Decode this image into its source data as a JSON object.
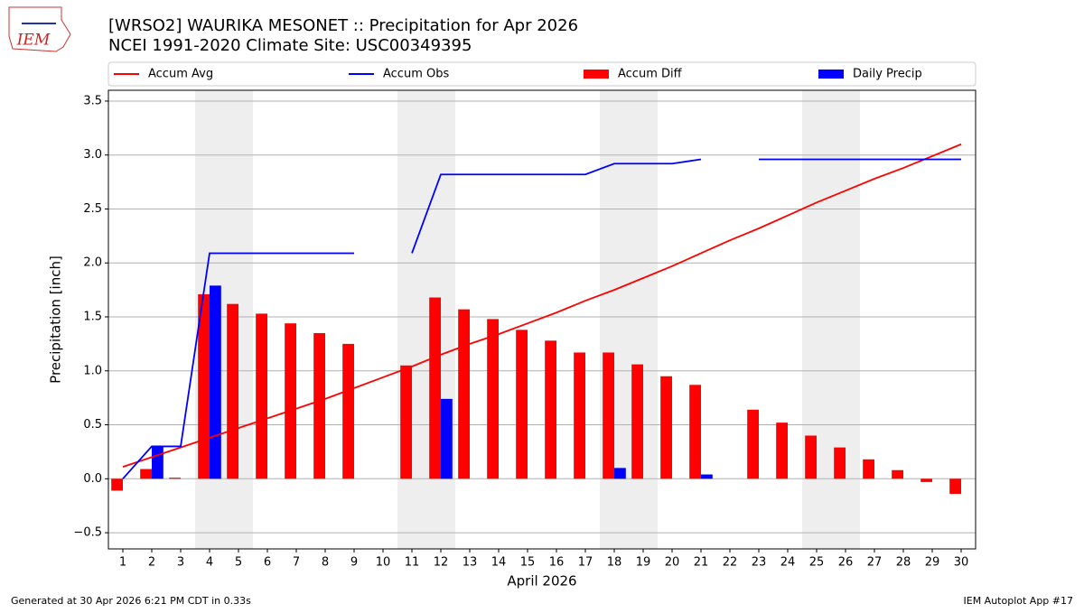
{
  "chart_data": {
    "type": "combo",
    "title": "[WRSO2] WAURIKA MESONET :: Precipitation for Apr 2026",
    "subtitle": "NCEI 1991-2020 Climate Site: USC00349395",
    "x_label": "April 2026",
    "y_label": "Precipitation [inch]",
    "x": [
      1,
      2,
      3,
      4,
      5,
      6,
      7,
      8,
      9,
      10,
      11,
      12,
      13,
      14,
      15,
      16,
      17,
      18,
      19,
      20,
      21,
      22,
      23,
      24,
      25,
      26,
      27,
      28,
      29,
      30
    ],
    "xlim": [
      0.5,
      30.5
    ],
    "xticks": [
      1,
      2,
      3,
      4,
      5,
      6,
      7,
      8,
      9,
      10,
      11,
      12,
      13,
      14,
      15,
      16,
      17,
      18,
      19,
      20,
      21,
      22,
      23,
      24,
      25,
      26,
      27,
      28,
      29,
      30
    ],
    "ylim": [
      -0.65,
      3.6
    ],
    "yticks": [
      {
        "value": -0.5,
        "label": "−0.5"
      },
      {
        "value": 0,
        "label": "0.0"
      },
      0.5,
      {
        "value": 1,
        "label": "1.0"
      },
      1.5,
      {
        "value": 2,
        "label": "2.0"
      },
      2.5,
      {
        "value": 3,
        "label": "3.0"
      },
      3.5
    ],
    "grid": true,
    "shaded_x_ranges": [
      [
        3.5,
        5.5
      ],
      [
        10.5,
        12.5
      ],
      [
        17.5,
        19.5
      ],
      [
        24.5,
        26.5
      ]
    ],
    "series": [
      {
        "name": "Accum Avg",
        "type": "line",
        "color": "#ff0000",
        "values": [
          0.11,
          0.2,
          0.29,
          0.38,
          0.47,
          0.56,
          0.65,
          0.74,
          0.84,
          0.94,
          1.04,
          1.15,
          1.25,
          1.34,
          1.44,
          1.54,
          1.65,
          1.75,
          1.86,
          1.97,
          2.09,
          2.21,
          2.32,
          2.44,
          2.56,
          2.67,
          2.78,
          2.88,
          2.99,
          3.1
        ]
      },
      {
        "name": "Accum Obs",
        "type": "line",
        "color": "#0000ff",
        "values": [
          0,
          0.3,
          0.3,
          2.09,
          2.09,
          2.09,
          2.09,
          2.09,
          2.09,
          null,
          2.09,
          2.82,
          2.82,
          2.82,
          2.82,
          2.82,
          2.82,
          2.92,
          2.92,
          2.92,
          2.96,
          null,
          2.96,
          2.96,
          2.96,
          2.96,
          2.96,
          2.96,
          2.96,
          2.96
        ]
      },
      {
        "name": "Accum Diff",
        "type": "bar",
        "color": "#ff0000",
        "values": [
          -0.11,
          0.09,
          0.01,
          1.71,
          1.62,
          1.53,
          1.44,
          1.35,
          1.25,
          null,
          1.05,
          1.68,
          1.57,
          1.48,
          1.38,
          1.28,
          1.17,
          1.17,
          1.06,
          0.95,
          0.87,
          null,
          0.64,
          0.52,
          0.4,
          0.29,
          0.18,
          0.08,
          -0.03,
          -0.14
        ]
      },
      {
        "name": "Daily Precip",
        "type": "bar",
        "color": "#0000ff",
        "values": [
          0,
          0.3,
          0,
          1.79,
          0,
          0,
          0,
          0,
          0,
          null,
          0,
          0.74,
          0,
          0,
          0,
          0,
          0,
          0.1,
          0,
          0,
          0.04,
          null,
          0,
          0,
          0,
          0,
          0,
          0,
          0,
          0
        ]
      }
    ]
  },
  "footer_left": "Generated at 30 Apr 2026 6:21 PM CDT in 0.33s",
  "footer_right": "IEM Autoplot App #17",
  "logo_text": "IEM"
}
